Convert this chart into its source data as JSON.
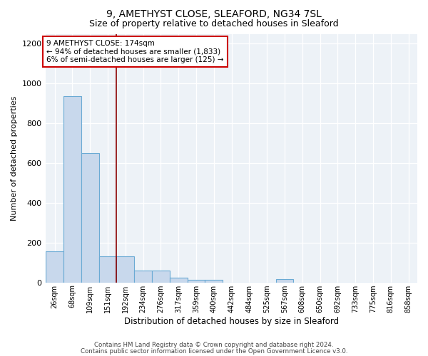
{
  "title1": "9, AMETHYST CLOSE, SLEAFORD, NG34 7SL",
  "title2": "Size of property relative to detached houses in Sleaford",
  "xlabel": "Distribution of detached houses by size in Sleaford",
  "ylabel": "Number of detached properties",
  "categories": [
    "26sqm",
    "68sqm",
    "109sqm",
    "151sqm",
    "192sqm",
    "234sqm",
    "276sqm",
    "317sqm",
    "359sqm",
    "400sqm",
    "442sqm",
    "484sqm",
    "525sqm",
    "567sqm",
    "608sqm",
    "650sqm",
    "692sqm",
    "733sqm",
    "775sqm",
    "816sqm",
    "858sqm"
  ],
  "values": [
    155,
    935,
    650,
    130,
    130,
    60,
    60,
    25,
    12,
    12,
    0,
    0,
    0,
    15,
    0,
    0,
    0,
    0,
    0,
    0,
    0
  ],
  "bar_color": "#c8d8ec",
  "bar_edge_color": "#6aaad4",
  "vline_color": "#8b0000",
  "vline_pos": 3.5,
  "annotation_text": "9 AMETHYST CLOSE: 174sqm\n← 94% of detached houses are smaller (1,833)\n6% of semi-detached houses are larger (125) →",
  "annotation_box_color": "white",
  "annotation_box_edge": "#cc0000",
  "ylim": [
    0,
    1250
  ],
  "yticks": [
    0,
    200,
    400,
    600,
    800,
    1000,
    1200
  ],
  "bg_color": "#edf2f7",
  "footer1": "Contains HM Land Registry data © Crown copyright and database right 2024.",
  "footer2": "Contains public sector information licensed under the Open Government Licence v3.0."
}
